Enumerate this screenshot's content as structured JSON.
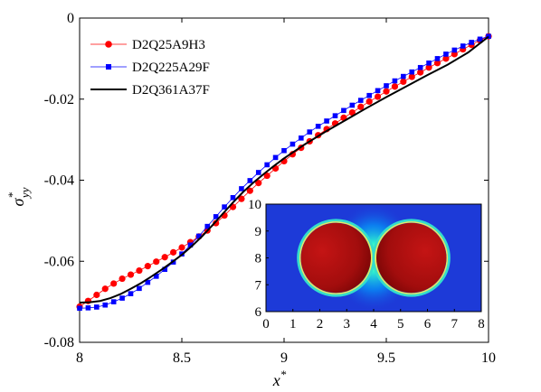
{
  "chart_data": {
    "type": "line",
    "title": "",
    "xlabel": {
      "base": "x",
      "sup": "*"
    },
    "ylabel": {
      "base": "σ",
      "sup": "*",
      "sub": "yy"
    },
    "xlim": [
      8,
      10
    ],
    "ylim": [
      -0.08,
      0
    ],
    "xticks": [
      8,
      8.5,
      9,
      9.5,
      10
    ],
    "xtick_labels": [
      "8",
      "8.5",
      "9",
      "9.5",
      "10"
    ],
    "yticks": [
      -0.08,
      -0.06,
      -0.04,
      -0.02,
      0
    ],
    "ytick_labels": [
      "-0.08",
      "-0.06",
      "-0.04",
      "-0.02",
      "0"
    ],
    "grid": false,
    "legend_position": "top-left",
    "series": [
      {
        "name": "D2Q25A9H3",
        "color": "#ff0000",
        "marker": "circle",
        "x": [
          8.0,
          8.0417,
          8.0833,
          8.125,
          8.1667,
          8.2083,
          8.25,
          8.2917,
          8.3333,
          8.375,
          8.4167,
          8.4583,
          8.5,
          8.5417,
          8.5833,
          8.625,
          8.6667,
          8.7083,
          8.75,
          8.7917,
          8.8333,
          8.875,
          8.9167,
          8.9583,
          9.0,
          9.0417,
          9.0833,
          9.125,
          9.1667,
          9.2083,
          9.25,
          9.2917,
          9.3333,
          9.375,
          9.4167,
          9.4583,
          9.5,
          9.5417,
          9.5833,
          9.625,
          9.6667,
          9.7083,
          9.75,
          9.7917,
          9.8333,
          9.875,
          9.9167,
          9.9583,
          10.0
        ],
        "y": [
          -0.0712,
          -0.0698,
          -0.0683,
          -0.0668,
          -0.0655,
          -0.0643,
          -0.0633,
          -0.0623,
          -0.0612,
          -0.0601,
          -0.059,
          -0.0578,
          -0.0566,
          -0.0553,
          -0.0539,
          -0.0524,
          -0.0506,
          -0.0487,
          -0.0466,
          -0.0446,
          -0.0426,
          -0.0407,
          -0.0389,
          -0.0371,
          -0.0353,
          -0.0336,
          -0.032,
          -0.0304,
          -0.0289,
          -0.0274,
          -0.026,
          -0.0246,
          -0.0233,
          -0.0219,
          -0.0206,
          -0.0194,
          -0.0181,
          -0.0169,
          -0.0157,
          -0.0145,
          -0.0134,
          -0.0122,
          -0.0111,
          -0.01,
          -0.0089,
          -0.0077,
          -0.0066,
          -0.0055,
          -0.0045
        ]
      },
      {
        "name": "D2Q225A29F",
        "color": "#0000ff",
        "marker": "square",
        "x": [
          8.0,
          8.0417,
          8.0833,
          8.125,
          8.1667,
          8.2083,
          8.25,
          8.2917,
          8.3333,
          8.375,
          8.4167,
          8.4583,
          8.5,
          8.5417,
          8.5833,
          8.625,
          8.6667,
          8.7083,
          8.75,
          8.7917,
          8.8333,
          8.875,
          8.9167,
          8.9583,
          9.0,
          9.0417,
          9.0833,
          9.125,
          9.1667,
          9.2083,
          9.25,
          9.2917,
          9.3333,
          9.375,
          9.4167,
          9.4583,
          9.5,
          9.5417,
          9.5833,
          9.625,
          9.6667,
          9.7083,
          9.75,
          9.7917,
          9.8333,
          9.875,
          9.9167,
          9.9583,
          10.0
        ],
        "y": [
          -0.0716,
          -0.0715,
          -0.0713,
          -0.0708,
          -0.07,
          -0.0691,
          -0.068,
          -0.0667,
          -0.0652,
          -0.0637,
          -0.062,
          -0.0602,
          -0.0582,
          -0.056,
          -0.0538,
          -0.0514,
          -0.049,
          -0.0466,
          -0.0443,
          -0.0421,
          -0.0401,
          -0.0381,
          -0.0362,
          -0.0344,
          -0.0327,
          -0.0311,
          -0.0296,
          -0.0281,
          -0.0267,
          -0.0254,
          -0.0241,
          -0.0228,
          -0.0215,
          -0.0203,
          -0.0191,
          -0.0179,
          -0.0167,
          -0.0155,
          -0.0144,
          -0.0133,
          -0.0122,
          -0.0111,
          -0.01,
          -0.0089,
          -0.0079,
          -0.0069,
          -0.006,
          -0.0052,
          -0.0045
        ]
      },
      {
        "name": "D2Q361A37F",
        "color": "#000000",
        "marker": "none",
        "x": [
          8.0,
          8.05,
          8.1,
          8.15,
          8.2,
          8.25,
          8.3,
          8.35,
          8.4,
          8.45,
          8.5,
          8.55,
          8.6,
          8.65,
          8.7,
          8.75,
          8.8,
          8.85,
          8.9,
          8.95,
          9.0,
          9.1,
          9.2,
          9.3,
          9.4,
          9.5,
          9.6,
          9.7,
          9.8,
          9.9,
          10.0
        ],
        "y": [
          -0.0702,
          -0.0701,
          -0.0698,
          -0.0691,
          -0.0681,
          -0.0668,
          -0.0654,
          -0.0638,
          -0.0621,
          -0.0603,
          -0.0584,
          -0.0562,
          -0.0538,
          -0.0511,
          -0.0483,
          -0.0455,
          -0.0429,
          -0.0406,
          -0.0385,
          -0.0365,
          -0.0346,
          -0.0312,
          -0.0281,
          -0.0252,
          -0.0223,
          -0.0195,
          -0.0168,
          -0.0141,
          -0.0115,
          -0.0085,
          -0.0046
        ]
      }
    ],
    "inset": {
      "type": "heatmap",
      "xlim": [
        0,
        8
      ],
      "ylim": [
        6,
        10
      ],
      "xticks": [
        "0",
        "1",
        "2",
        "3",
        "4",
        "5",
        "6",
        "7",
        "8"
      ],
      "yticks": [
        "6",
        "7",
        "8",
        "9",
        "10"
      ],
      "background_color": "#1d3ad8",
      "particles": [
        {
          "cx": 2.6,
          "cy": 8.0,
          "r": 1.3,
          "color": "#b01010"
        },
        {
          "cx": 5.4,
          "cy": 8.0,
          "r": 1.3,
          "color": "#b01010"
        }
      ]
    }
  }
}
